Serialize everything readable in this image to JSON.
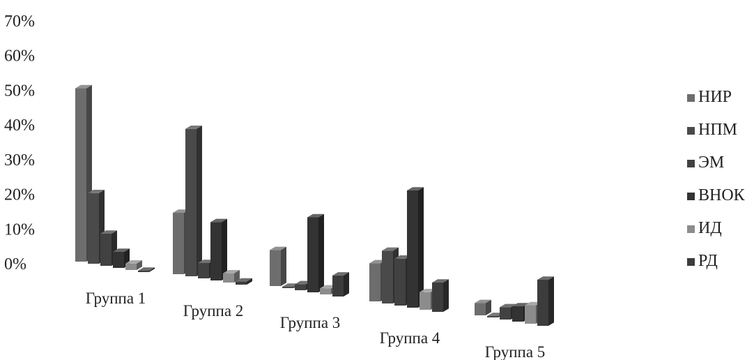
{
  "chart_data": {
    "type": "bar",
    "categories": [
      "Группа 1",
      "Группа 2",
      "Группа 3",
      "Группа 4",
      "Группа 5"
    ],
    "series": [
      {
        "name": "НИР",
        "color": "#6d6d6d",
        "values": [
          54,
          20,
          12,
          13,
          4
        ]
      },
      {
        "name": "НПМ",
        "color": "#4a4a4a",
        "values": [
          22,
          48,
          0,
          18,
          0
        ]
      },
      {
        "name": "ЭМ",
        "color": "#414141",
        "values": [
          10,
          5,
          2,
          16,
          4
        ]
      },
      {
        "name": "ВНОК",
        "color": "#333333",
        "values": [
          5,
          19,
          25,
          40,
          5
        ]
      },
      {
        "name": "ИД",
        "color": "#8c8c8c",
        "values": [
          2,
          3,
          2,
          6,
          6
        ]
      },
      {
        "name": "РД",
        "color": "#3c3c3c",
        "values": [
          0,
          1,
          7,
          10,
          15
        ]
      }
    ],
    "y_ticks": [
      "0%",
      "10%",
      "20%",
      "30%",
      "40%",
      "50%",
      "60%",
      "70%"
    ],
    "ylim": [
      0,
      70
    ],
    "legend_position": "right",
    "style": "3d-column"
  }
}
